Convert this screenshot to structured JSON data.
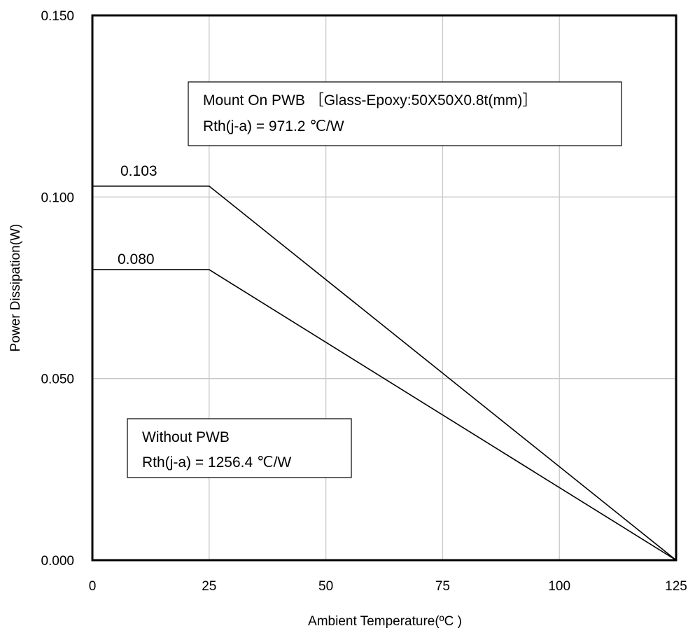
{
  "chart_data": {
    "type": "line",
    "xlabel": "Ambient Temperature(ºC )",
    "ylabel": "Power Dissipation(W)",
    "xlim": [
      0,
      125
    ],
    "ylim": [
      0,
      0.15
    ],
    "x_ticks": [
      0,
      25,
      50,
      75,
      100,
      125
    ],
    "x_tick_labels": [
      "0",
      "25",
      "50",
      "75",
      "100",
      "125"
    ],
    "y_ticks": [
      0,
      0.05,
      0.1,
      0.15
    ],
    "y_tick_labels": [
      "0.000",
      "0.050",
      "0.100",
      "0.150"
    ],
    "grid": true,
    "series": [
      {
        "x": [
          0,
          25,
          125
        ],
        "y": [
          0.103,
          0.103,
          0
        ],
        "line_color": "#000000"
      },
      {
        "x": [
          0,
          25,
          125
        ],
        "y": [
          0.08,
          0.08,
          0
        ],
        "line_color": "#000000"
      }
    ],
    "data_labels": [
      "0.103",
      "0.080"
    ],
    "annotations": [
      {
        "line1": "Mount On PWB ［Glass-Epoxy:50X50X0.8t(mm)］",
        "line2": "Rth(j-a) = 971.2 ℃/W"
      },
      {
        "line1": "Without PWB",
        "line2": "Rth(j-a) = 1256.4 ℃/W"
      }
    ],
    "colors": {
      "axis": "#000000",
      "grid": "#c8c8c8",
      "line": "#000000"
    }
  }
}
